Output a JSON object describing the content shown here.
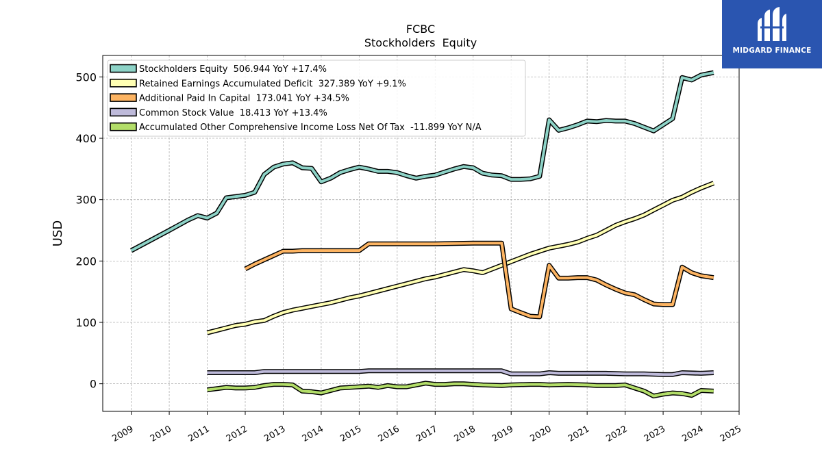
{
  "chart_data": {
    "type": "line",
    "title": "FCBC",
    "subtitle": "Stockholders  Equity",
    "xlabel": "",
    "ylabel": "USD",
    "xlim": [
      2008.25,
      2025.0
    ],
    "ylim": [
      -45,
      535
    ],
    "x_ticks": [
      "2009",
      "2010",
      "2011",
      "2012",
      "2013",
      "2014",
      "2015",
      "2016",
      "2017",
      "2018",
      "2019",
      "2020",
      "2021",
      "2022",
      "2023",
      "2024",
      "2025"
    ],
    "y_ticks": [
      0,
      100,
      200,
      300,
      400,
      500
    ],
    "grid": true,
    "legend_position": "top-left",
    "series": [
      {
        "name": "Stockholders Equity",
        "legend": "Stockholders Equity  506.944 YoY +17.4%",
        "color": "#8dd3c7",
        "points": [
          [
            2009.0,
            217
          ],
          [
            2010.0,
            250
          ],
          [
            2010.5,
            267
          ],
          [
            2010.75,
            274
          ],
          [
            2011.0,
            270
          ],
          [
            2011.25,
            278
          ],
          [
            2011.5,
            303
          ],
          [
            2012.0,
            307
          ],
          [
            2012.25,
            312
          ],
          [
            2012.5,
            341
          ],
          [
            2012.75,
            353
          ],
          [
            2013.0,
            358
          ],
          [
            2013.25,
            360
          ],
          [
            2013.5,
            352
          ],
          [
            2013.75,
            351
          ],
          [
            2014.0,
            329
          ],
          [
            2014.25,
            335
          ],
          [
            2014.5,
            344
          ],
          [
            2014.75,
            349
          ],
          [
            2015.0,
            353
          ],
          [
            2015.25,
            350
          ],
          [
            2015.5,
            346
          ],
          [
            2015.75,
            346
          ],
          [
            2016.0,
            344
          ],
          [
            2016.25,
            339
          ],
          [
            2016.5,
            335
          ],
          [
            2016.75,
            338
          ],
          [
            2017.0,
            340
          ],
          [
            2017.25,
            345
          ],
          [
            2017.5,
            350
          ],
          [
            2017.75,
            354
          ],
          [
            2018.0,
            352
          ],
          [
            2018.25,
            343
          ],
          [
            2018.5,
            340
          ],
          [
            2018.75,
            339
          ],
          [
            2019.0,
            333
          ],
          [
            2019.25,
            333
          ],
          [
            2019.5,
            334
          ],
          [
            2019.75,
            338
          ],
          [
            2020.0,
            430
          ],
          [
            2020.25,
            413
          ],
          [
            2020.5,
            417
          ],
          [
            2020.75,
            422
          ],
          [
            2021.0,
            428
          ],
          [
            2021.25,
            427
          ],
          [
            2021.5,
            429
          ],
          [
            2021.75,
            428
          ],
          [
            2022.0,
            428
          ],
          [
            2022.25,
            424
          ],
          [
            2022.5,
            418
          ],
          [
            2022.75,
            412
          ],
          [
            2023.0,
            422
          ],
          [
            2023.25,
            432
          ],
          [
            2023.5,
            499
          ],
          [
            2023.75,
            495
          ],
          [
            2024.0,
            503
          ],
          [
            2024.33,
            507
          ]
        ]
      },
      {
        "name": "Retained Earnings Accumulated Deficit",
        "legend": "Retained Earnings Accumulated Deficit  327.389 YoY +9.1%",
        "color": "#ffffb3",
        "points": [
          [
            2011.0,
            83
          ],
          [
            2011.25,
            87
          ],
          [
            2011.5,
            91
          ],
          [
            2011.75,
            95
          ],
          [
            2012.0,
            97
          ],
          [
            2012.25,
            101
          ],
          [
            2012.5,
            103
          ],
          [
            2012.75,
            110
          ],
          [
            2013.0,
            116
          ],
          [
            2013.25,
            120
          ],
          [
            2013.5,
            123
          ],
          [
            2013.75,
            126
          ],
          [
            2014.0,
            129
          ],
          [
            2014.25,
            132
          ],
          [
            2014.5,
            136
          ],
          [
            2014.75,
            140
          ],
          [
            2015.0,
            143
          ],
          [
            2015.25,
            147
          ],
          [
            2015.5,
            151
          ],
          [
            2015.75,
            155
          ],
          [
            2016.0,
            159
          ],
          [
            2016.25,
            163
          ],
          [
            2016.5,
            167
          ],
          [
            2016.75,
            171
          ],
          [
            2017.0,
            174
          ],
          [
            2017.25,
            178
          ],
          [
            2017.5,
            182
          ],
          [
            2017.75,
            186
          ],
          [
            2018.0,
            184
          ],
          [
            2018.25,
            181
          ],
          [
            2018.5,
            187
          ],
          [
            2018.75,
            193
          ],
          [
            2019.0,
            199
          ],
          [
            2019.25,
            205
          ],
          [
            2019.5,
            211
          ],
          [
            2019.75,
            216
          ],
          [
            2020.0,
            221
          ],
          [
            2020.25,
            224
          ],
          [
            2020.5,
            227
          ],
          [
            2020.75,
            231
          ],
          [
            2021.0,
            237
          ],
          [
            2021.25,
            242
          ],
          [
            2021.5,
            250
          ],
          [
            2021.75,
            258
          ],
          [
            2022.0,
            264
          ],
          [
            2022.25,
            269
          ],
          [
            2022.5,
            275
          ],
          [
            2022.75,
            283
          ],
          [
            2023.0,
            291
          ],
          [
            2023.25,
            299
          ],
          [
            2023.5,
            304
          ],
          [
            2023.75,
            312
          ],
          [
            2024.0,
            319
          ],
          [
            2024.33,
            327
          ]
        ]
      },
      {
        "name": "Additional Paid In Capital",
        "legend": "Additional Paid In Capital  173.041 YoY +34.5%",
        "color": "#fdb462",
        "points": [
          [
            2012.0,
            187
          ],
          [
            2012.25,
            195
          ],
          [
            2012.5,
            202
          ],
          [
            2012.75,
            209
          ],
          [
            2013.0,
            216
          ],
          [
            2013.25,
            216
          ],
          [
            2013.5,
            217
          ],
          [
            2013.75,
            217
          ],
          [
            2014.0,
            217
          ],
          [
            2014.25,
            217
          ],
          [
            2014.5,
            217
          ],
          [
            2014.75,
            217
          ],
          [
            2015.0,
            217
          ],
          [
            2015.25,
            228
          ],
          [
            2015.5,
            228
          ],
          [
            2016.0,
            228
          ],
          [
            2017.0,
            228
          ],
          [
            2018.0,
            229
          ],
          [
            2018.75,
            229
          ],
          [
            2019.0,
            122
          ],
          [
            2019.25,
            116
          ],
          [
            2019.5,
            110
          ],
          [
            2019.75,
            109
          ],
          [
            2020.0,
            193
          ],
          [
            2020.25,
            172
          ],
          [
            2020.5,
            172
          ],
          [
            2020.75,
            173
          ],
          [
            2021.0,
            173
          ],
          [
            2021.25,
            169
          ],
          [
            2021.5,
            161
          ],
          [
            2021.75,
            154
          ],
          [
            2022.0,
            148
          ],
          [
            2022.25,
            145
          ],
          [
            2022.5,
            137
          ],
          [
            2022.75,
            130
          ],
          [
            2023.0,
            129
          ],
          [
            2023.25,
            129
          ],
          [
            2023.5,
            190
          ],
          [
            2023.75,
            181
          ],
          [
            2024.0,
            176
          ],
          [
            2024.33,
            173
          ]
        ]
      },
      {
        "name": "Common Stock Value",
        "legend": "Common Stock Value  18.413 YoY +13.4%",
        "color": "#bebada",
        "points": [
          [
            2011.0,
            18
          ],
          [
            2011.5,
            18
          ],
          [
            2012.0,
            18
          ],
          [
            2012.25,
            18
          ],
          [
            2012.5,
            20
          ],
          [
            2013.0,
            20
          ],
          [
            2015.0,
            20
          ],
          [
            2015.25,
            21
          ],
          [
            2016.0,
            21
          ],
          [
            2017.0,
            21
          ],
          [
            2018.0,
            21
          ],
          [
            2018.75,
            21
          ],
          [
            2019.0,
            16
          ],
          [
            2019.5,
            16
          ],
          [
            2019.75,
            16
          ],
          [
            2020.0,
            18
          ],
          [
            2020.25,
            17
          ],
          [
            2021.0,
            17
          ],
          [
            2021.5,
            17
          ],
          [
            2022.0,
            16
          ],
          [
            2022.5,
            16
          ],
          [
            2023.0,
            15
          ],
          [
            2023.25,
            15
          ],
          [
            2023.5,
            18
          ],
          [
            2024.0,
            17
          ],
          [
            2024.33,
            18
          ]
        ]
      },
      {
        "name": "Accumulated Other Comprehensive Income Loss Net Of Tax",
        "legend": "Accumulated Other Comprehensive Income Loss Net Of Tax  -11.899 YoY N/A",
        "color": "#b3de69",
        "points": [
          [
            2011.0,
            -10
          ],
          [
            2011.25,
            -8
          ],
          [
            2011.5,
            -6
          ],
          [
            2011.75,
            -7
          ],
          [
            2012.0,
            -7
          ],
          [
            2012.25,
            -6
          ],
          [
            2012.5,
            -3
          ],
          [
            2012.75,
            -1
          ],
          [
            2013.0,
            -1
          ],
          [
            2013.25,
            -2
          ],
          [
            2013.5,
            -12
          ],
          [
            2013.75,
            -13
          ],
          [
            2014.0,
            -15
          ],
          [
            2014.25,
            -11
          ],
          [
            2014.5,
            -7
          ],
          [
            2014.75,
            -6
          ],
          [
            2015.0,
            -5
          ],
          [
            2015.25,
            -4
          ],
          [
            2015.5,
            -6
          ],
          [
            2015.75,
            -3
          ],
          [
            2016.0,
            -5
          ],
          [
            2016.25,
            -5
          ],
          [
            2016.5,
            -2
          ],
          [
            2016.75,
            1
          ],
          [
            2017.0,
            -1
          ],
          [
            2017.25,
            -1
          ],
          [
            2017.5,
            0
          ],
          [
            2017.75,
            0
          ],
          [
            2018.0,
            -1
          ],
          [
            2018.25,
            -2
          ],
          [
            2018.75,
            -3
          ],
          [
            2019.0,
            -2
          ],
          [
            2019.5,
            -1
          ],
          [
            2019.75,
            -1
          ],
          [
            2020.0,
            -2
          ],
          [
            2020.5,
            -1
          ],
          [
            2021.0,
            -2
          ],
          [
            2021.25,
            -3
          ],
          [
            2021.75,
            -3
          ],
          [
            2022.0,
            -2
          ],
          [
            2022.25,
            -7
          ],
          [
            2022.5,
            -12
          ],
          [
            2022.75,
            -20
          ],
          [
            2023.0,
            -17
          ],
          [
            2023.25,
            -15
          ],
          [
            2023.5,
            -16
          ],
          [
            2023.75,
            -19
          ],
          [
            2024.0,
            -11
          ],
          [
            2024.33,
            -12
          ]
        ]
      }
    ]
  },
  "logo": {
    "text": "MIDGARD FINANCE"
  }
}
